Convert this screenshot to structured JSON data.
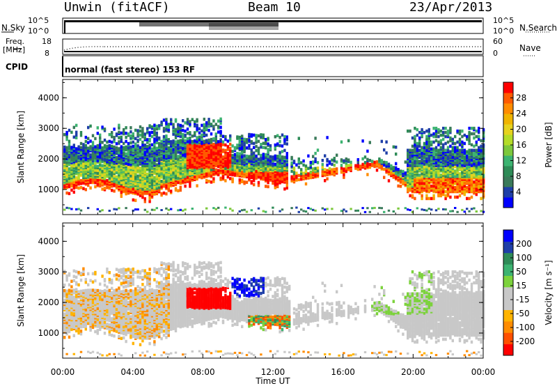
{
  "header": {
    "station": "Unwin (fitACF)",
    "beam": "Beam 10",
    "date": "23/Apr/2013"
  },
  "top_panels": {
    "nsky_label": "N.Sky",
    "nsearch_label": "N.Search",
    "left_ticks_top": "10^5",
    "left_ticks_bottom": "10^0",
    "right_ticks_top": "10^5",
    "right_ticks_bottom": "10^0",
    "freq_label": "Freq.",
    "freq_unit": "[MHz]",
    "freq_ticks": [
      "18",
      "8"
    ],
    "nave_ticks": [
      "60",
      "0"
    ],
    "nave_label": "Nave",
    "cpid_label": "CPID",
    "cpid_text": "normal (fast stereo) 153 RF"
  },
  "colors": {
    "power_scale": [
      "#0000ff",
      "#1f3fa8",
      "#3a7a5a",
      "#2e8b57",
      "#3cb371",
      "#7cc83c",
      "#b4dc28",
      "#e6d21e",
      "#f0b400",
      "#ff8c00",
      "#ff5a00",
      "#ff0000"
    ],
    "velocity_scale": [
      "#0000ff",
      "#1f3fa8",
      "#2e8b57",
      "#3cb371",
      "#7cd23c",
      "#c8c8c8",
      "#c8c8c8",
      "#ffb400",
      "#ff8c00",
      "#ff5000",
      "#ff0000"
    ]
  },
  "chart_data": [
    {
      "type": "heatmap",
      "title": "",
      "xlabel": "",
      "ylabel": "Slant Range [km]",
      "xlim": [
        "00:00",
        "00:00"
      ],
      "ylim": [
        180,
        4600
      ],
      "yticks": [
        "1000",
        "2000",
        "3000",
        "4000"
      ],
      "colorbar": {
        "label": "Power [dB]",
        "ticks": [
          "4",
          "8",
          "12",
          "16",
          "20",
          "24",
          "28"
        ]
      }
    },
    {
      "type": "heatmap",
      "title": "",
      "xlabel": "Time UT",
      "ylabel": "Slant Range [km]",
      "xticks": [
        "00:00",
        "04:00",
        "08:00",
        "12:00",
        "16:00",
        "20:00",
        "00:00"
      ],
      "ylim": [
        180,
        4600
      ],
      "yticks": [
        "1000",
        "2000",
        "3000",
        "4000"
      ],
      "colorbar": {
        "label": "Velocity [m s⁻¹]",
        "ticks": [
          "200",
          "100",
          "50",
          "15",
          "-15",
          "-50",
          "-100",
          "-200"
        ]
      }
    }
  ]
}
